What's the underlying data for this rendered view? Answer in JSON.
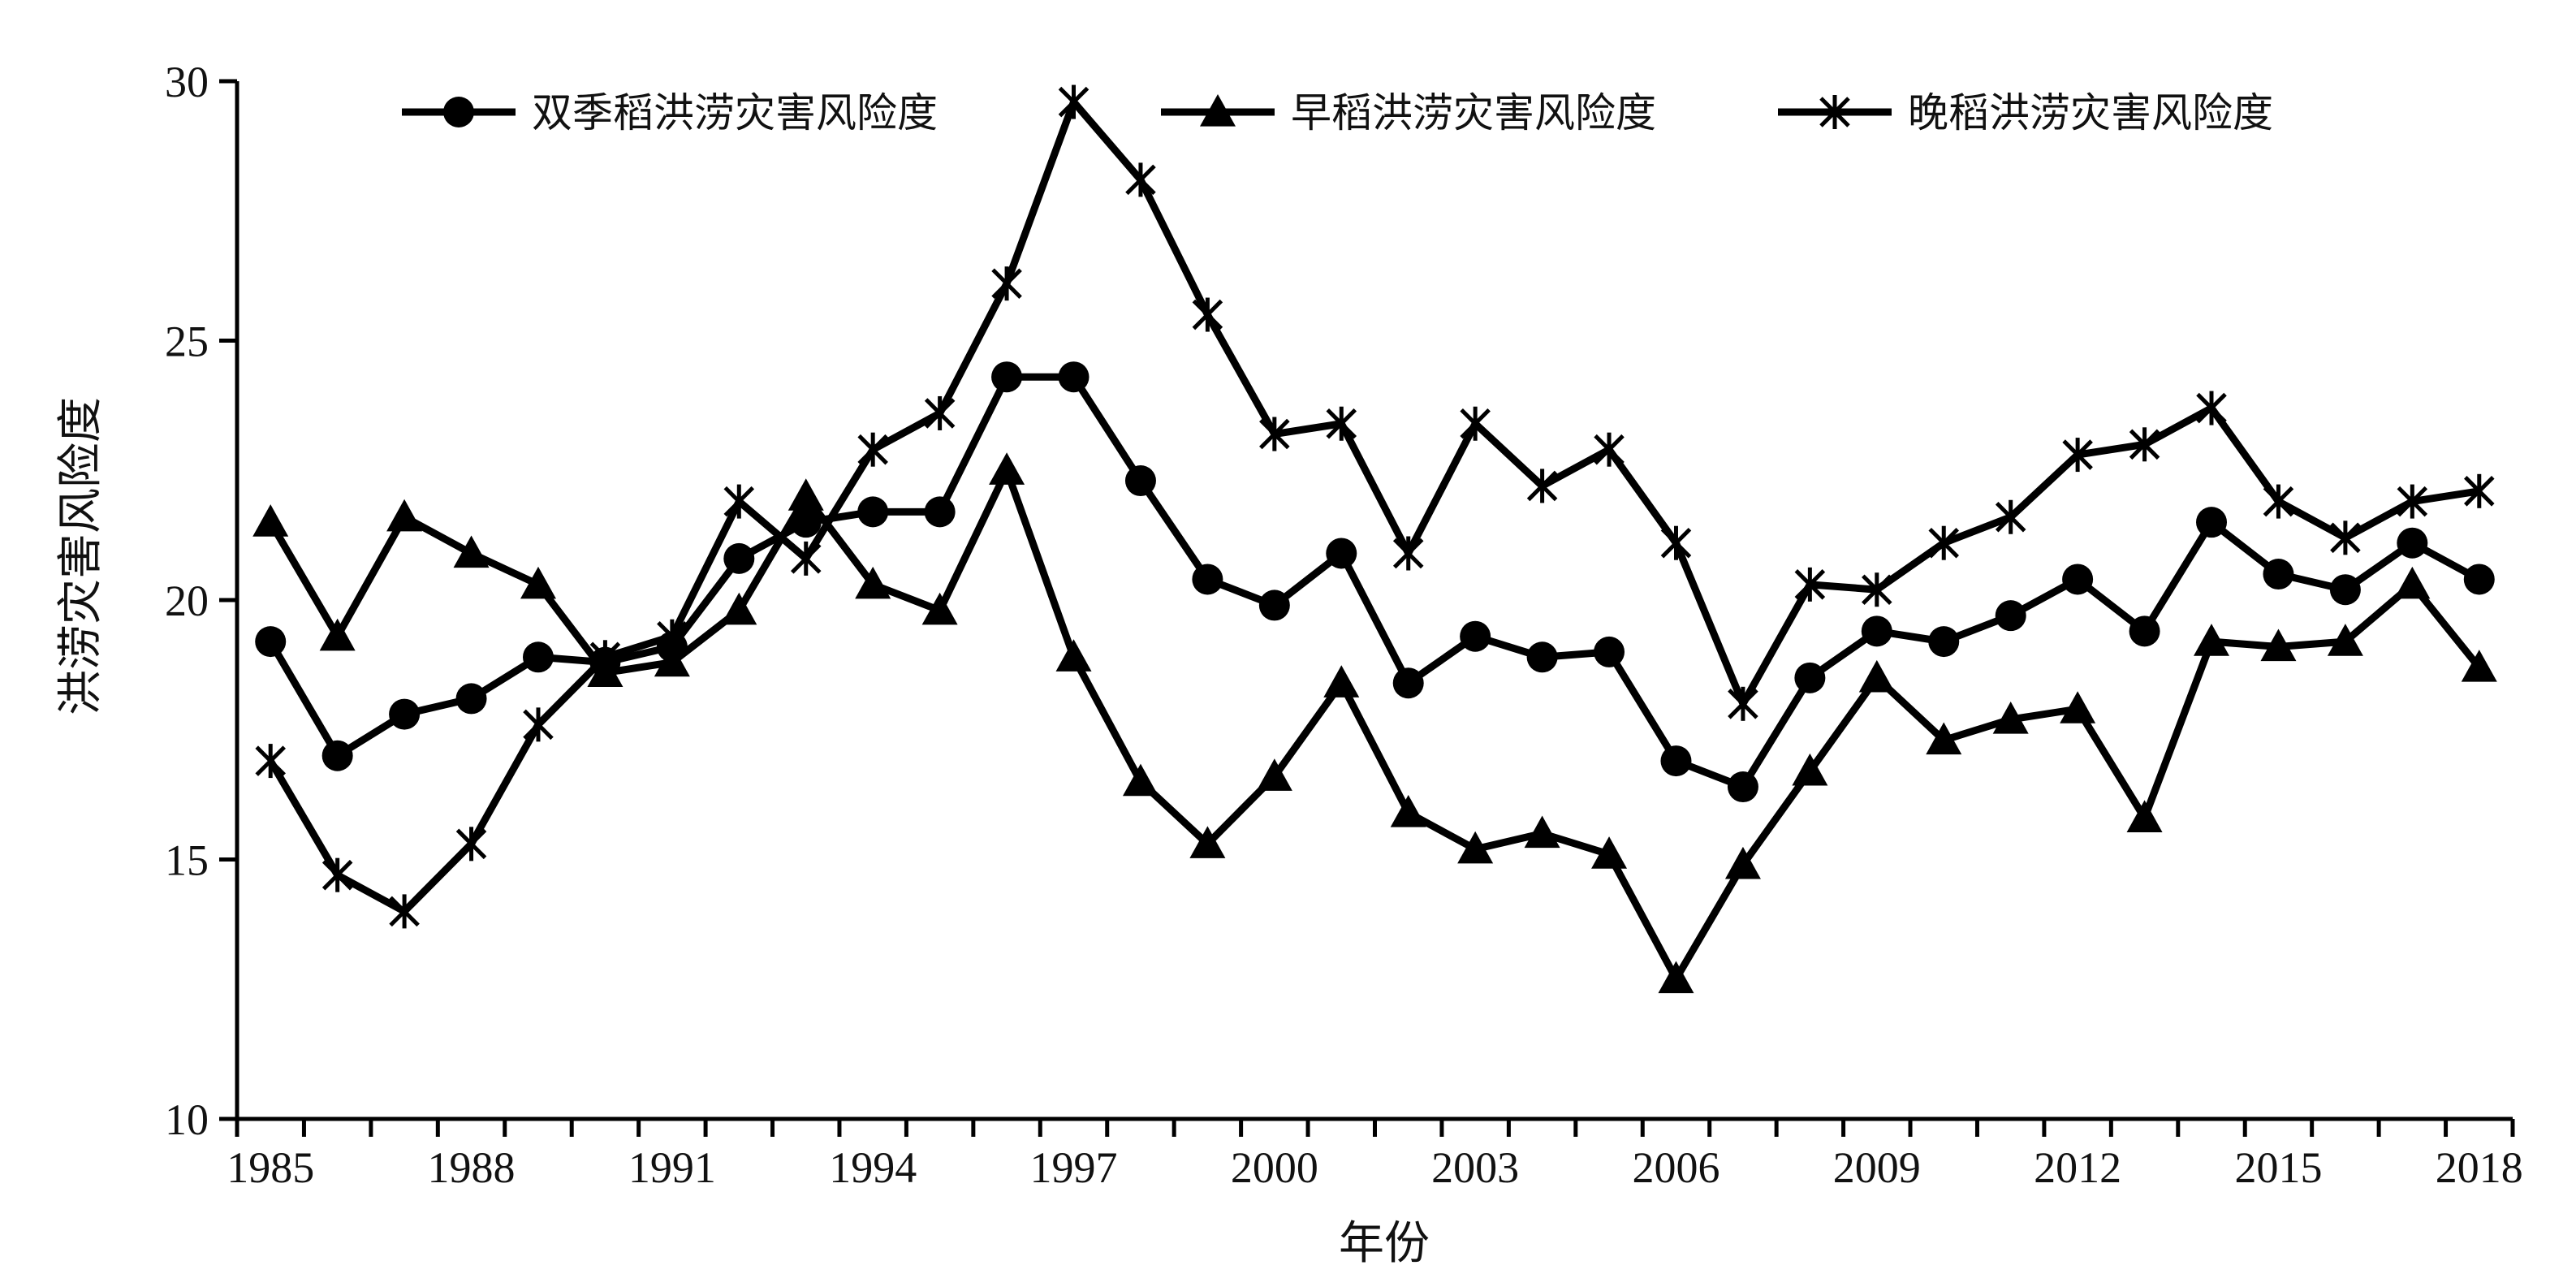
{
  "chart_data": {
    "type": "line",
    "xlabel": "年份",
    "ylabel": "洪涝灾害风险度",
    "ylim": [
      10,
      30
    ],
    "yticks": [
      10,
      15,
      20,
      25,
      30
    ],
    "xlim": [
      1985,
      2018
    ],
    "xtick_labels": [
      "1985",
      "1988",
      "1991",
      "1994",
      "1997",
      "2000",
      "2003",
      "2006",
      "2009",
      "2012",
      "2015",
      "2018"
    ],
    "grid": false,
    "legend_position": "top",
    "x": [
      1985,
      1986,
      1987,
      1988,
      1989,
      1990,
      1991,
      1992,
      1993,
      1994,
      1995,
      1996,
      1997,
      1998,
      1999,
      2000,
      2001,
      2002,
      2003,
      2004,
      2005,
      2006,
      2007,
      2008,
      2009,
      2010,
      2011,
      2012,
      2013,
      2014,
      2015,
      2016,
      2017,
      2018
    ],
    "series": [
      {
        "name": "双季稻洪涝灾害风险度",
        "marker": "circle",
        "values": [
          19.2,
          17.0,
          17.8,
          18.1,
          18.9,
          18.8,
          19.1,
          20.8,
          21.5,
          21.7,
          21.7,
          24.3,
          24.3,
          22.3,
          20.4,
          19.9,
          20.9,
          18.4,
          19.3,
          18.9,
          19.0,
          16.9,
          16.4,
          18.5,
          19.4,
          19.2,
          19.7,
          20.4,
          19.4,
          21.5,
          20.5,
          20.2,
          21.1,
          20.4
        ]
      },
      {
        "name": "早稻洪涝灾害风险度",
        "marker": "triangle",
        "values": [
          21.5,
          19.3,
          21.6,
          20.9,
          20.3,
          18.6,
          18.8,
          19.8,
          22.0,
          20.3,
          19.8,
          22.5,
          18.9,
          16.5,
          15.3,
          16.6,
          18.4,
          15.9,
          15.2,
          15.5,
          15.1,
          12.7,
          14.9,
          16.7,
          18.5,
          17.3,
          17.7,
          17.9,
          15.8,
          19.2,
          19.1,
          19.2,
          20.3,
          18.7
        ]
      },
      {
        "name": "晚稻洪涝灾害风险度",
        "marker": "star",
        "values": [
          16.9,
          14.7,
          14.0,
          15.3,
          17.6,
          18.9,
          19.3,
          21.9,
          20.8,
          22.9,
          23.6,
          26.1,
          29.6,
          28.1,
          25.5,
          23.2,
          23.4,
          20.9,
          23.4,
          22.2,
          22.9,
          21.1,
          18.0,
          20.3,
          20.2,
          21.1,
          21.6,
          22.8,
          23.0,
          23.7,
          21.9,
          21.2,
          21.9,
          22.1
        ]
      }
    ]
  }
}
